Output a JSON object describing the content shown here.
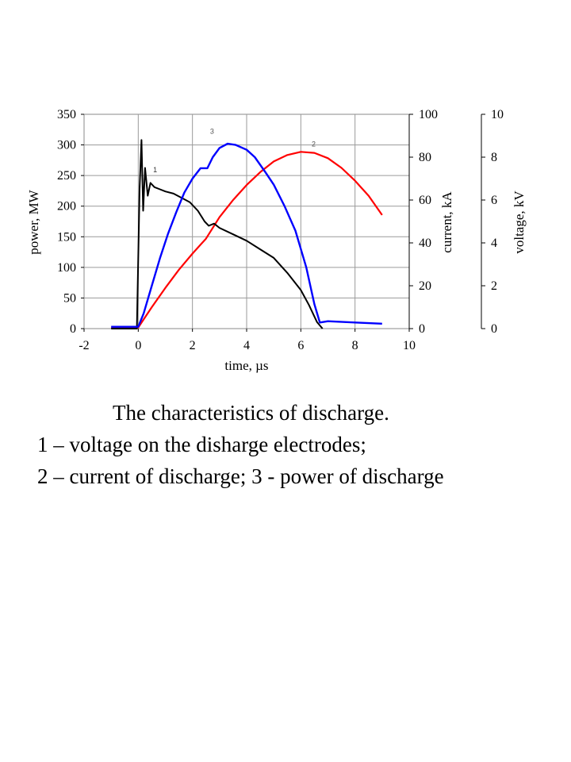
{
  "chart_data": {
    "type": "line",
    "x_axis": {
      "label": "time, µs",
      "range": [
        -2,
        10
      ],
      "ticks": [
        "-2",
        "0",
        "2",
        "4",
        "6",
        "8",
        "10"
      ]
    },
    "y_axes": [
      {
        "id": "power",
        "label": "power, MW",
        "side": "left",
        "range": [
          0,
          350
        ],
        "ticks": [
          "0",
          "50",
          "100",
          "150",
          "200",
          "250",
          "300",
          "350"
        ]
      },
      {
        "id": "current",
        "label": "current, kA",
        "side": "right",
        "range": [
          0,
          100
        ],
        "ticks": [
          "0",
          "20",
          "40",
          "60",
          "80",
          "100"
        ]
      },
      {
        "id": "voltage",
        "label": "voltage, kV",
        "side": "right-outer",
        "range": [
          0,
          10
        ],
        "ticks": [
          "0",
          "2",
          "4",
          "6",
          "8",
          "10"
        ]
      }
    ],
    "grid": "horizontal",
    "series": [
      {
        "label": "1",
        "color": "#000000",
        "axis": "voltage",
        "points": [
          [
            -1,
            0
          ],
          [
            -0.05,
            0
          ],
          [
            0.05,
            6.5
          ],
          [
            0.12,
            8.8
          ],
          [
            0.18,
            5.5
          ],
          [
            0.25,
            7.5
          ],
          [
            0.35,
            6.2
          ],
          [
            0.45,
            6.8
          ],
          [
            0.6,
            6.6
          ],
          [
            0.8,
            6.5
          ],
          [
            1,
            6.4
          ],
          [
            1.3,
            6.3
          ],
          [
            1.6,
            6.1
          ],
          [
            1.9,
            5.9
          ],
          [
            2.2,
            5.5
          ],
          [
            2.45,
            5
          ],
          [
            2.6,
            4.8
          ],
          [
            2.8,
            4.9
          ],
          [
            3,
            4.7
          ],
          [
            3.5,
            4.4
          ],
          [
            4,
            4.1
          ],
          [
            4.5,
            3.7
          ],
          [
            5,
            3.3
          ],
          [
            5.5,
            2.6
          ],
          [
            6,
            1.8
          ],
          [
            6.3,
            1.1
          ],
          [
            6.6,
            0.3
          ],
          [
            6.8,
            0
          ]
        ]
      },
      {
        "label": "2",
        "color": "#ff0000",
        "axis": "current",
        "points": [
          [
            -1,
            0.5
          ],
          [
            0,
            0.5
          ],
          [
            0.5,
            10
          ],
          [
            1,
            19
          ],
          [
            1.5,
            27.5
          ],
          [
            2,
            35
          ],
          [
            2.5,
            42
          ],
          [
            3,
            52
          ],
          [
            3.5,
            60
          ],
          [
            4,
            67
          ],
          [
            4.5,
            73
          ],
          [
            5,
            78
          ],
          [
            5.5,
            81
          ],
          [
            6,
            82.5
          ],
          [
            6.5,
            82
          ],
          [
            7,
            79.5
          ],
          [
            7.5,
            75
          ],
          [
            8,
            69
          ],
          [
            8.5,
            62
          ],
          [
            9,
            53
          ]
        ]
      },
      {
        "label": "3",
        "color": "#0000ff",
        "axis": "power",
        "points": [
          [
            -1,
            3
          ],
          [
            0,
            3
          ],
          [
            0.2,
            25
          ],
          [
            0.5,
            70
          ],
          [
            0.8,
            115
          ],
          [
            1.1,
            155
          ],
          [
            1.4,
            190
          ],
          [
            1.7,
            222
          ],
          [
            2,
            245
          ],
          [
            2.3,
            262
          ],
          [
            2.55,
            262
          ],
          [
            2.75,
            280
          ],
          [
            3,
            295
          ],
          [
            3.3,
            302
          ],
          [
            3.6,
            300
          ],
          [
            4,
            292
          ],
          [
            4.3,
            280
          ],
          [
            4.7,
            255
          ],
          [
            5,
            235
          ],
          [
            5.4,
            200
          ],
          [
            5.8,
            160
          ],
          [
            6.2,
            100
          ],
          [
            6.5,
            40
          ],
          [
            6.7,
            10
          ],
          [
            7,
            12
          ],
          [
            8,
            10
          ],
          [
            9,
            8
          ]
        ]
      }
    ]
  },
  "caption": {
    "line1": "The characteristics of discharge.",
    "line2": "1 – voltage on the disharge electrodes;",
    "line3": "2 – current of discharge; 3 - power of discharge"
  }
}
